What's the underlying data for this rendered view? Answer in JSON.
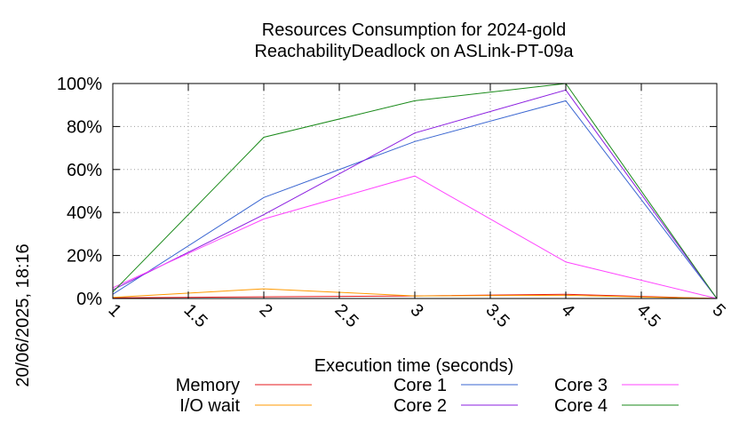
{
  "chart_data": {
    "type": "line",
    "title_line1": "Resources Consumption for 2024-gold",
    "title_line2": "ReachabilityDeadlock on ASLink-PT-09a",
    "xlabel": "Execution time (seconds)",
    "side_label": "20/06/2025, 18:16",
    "xlim": [
      1,
      5
    ],
    "ylim": [
      0,
      100
    ],
    "x_ticks": [
      "1",
      "1.5",
      "2",
      "2.5",
      "3",
      "3.5",
      "4",
      "4.5",
      "5"
    ],
    "y_ticks": [
      "0%",
      "20%",
      "40%",
      "60%",
      "80%",
      "100%"
    ],
    "grid": true,
    "legend_position": "bottom",
    "x": [
      1,
      2,
      3,
      4,
      5
    ],
    "series": [
      {
        "name": "Memory",
        "color": "#e41a1c",
        "values": [
          0.3,
          0.8,
          1.2,
          2,
          0
        ]
      },
      {
        "name": "I/O wait",
        "color": "#ff9900",
        "values": [
          0.5,
          4.5,
          1.2,
          1.5,
          0
        ]
      },
      {
        "name": "Core 1",
        "color": "#3a66d1",
        "values": [
          2,
          47,
          73,
          92,
          0
        ]
      },
      {
        "name": "Core 2",
        "color": "#8b1ee0",
        "values": [
          4,
          39,
          77,
          97,
          0
        ]
      },
      {
        "name": "Core 3",
        "color": "#ff44ff",
        "values": [
          5,
          37,
          57,
          17,
          0
        ]
      },
      {
        "name": "Core 4",
        "color": "#1a8a1a",
        "values": [
          3,
          75,
          92,
          100,
          0
        ]
      }
    ]
  }
}
